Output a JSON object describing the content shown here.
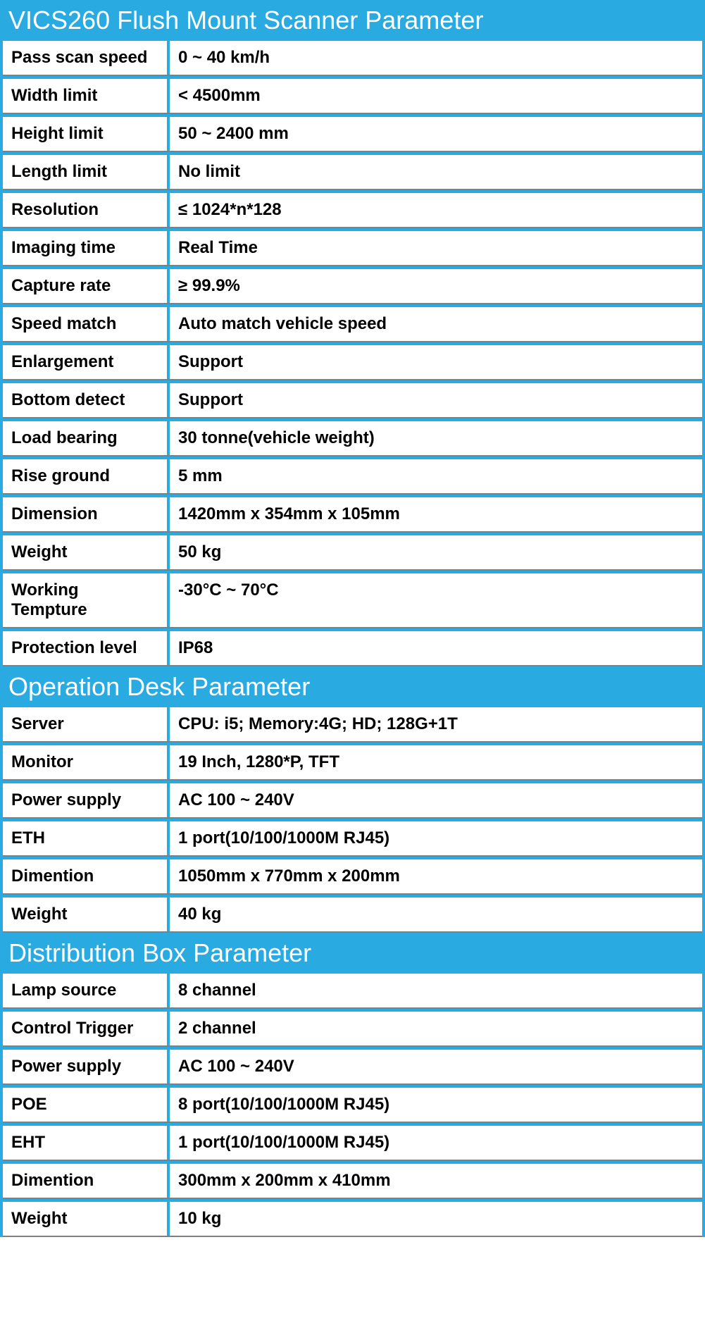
{
  "colors": {
    "header_bg": "#29abe2",
    "header_text": "#ffffff",
    "cell_text": "#000000",
    "cell_bg": "#ffffff",
    "divider": "#808080"
  },
  "typography": {
    "header_fontsize": 36,
    "cell_fontsize": 24,
    "cell_fontweight": 700,
    "header_fontweight": 400
  },
  "layout": {
    "label_column_width": 237,
    "total_width": 1001
  },
  "sections": [
    {
      "title": "VICS260 Flush Mount Scanner Parameter",
      "rows": [
        {
          "label": "Pass scan speed",
          "value": "0 ~ 40 km/h"
        },
        {
          "label": "Width limit",
          "value": "< 4500mm"
        },
        {
          "label": "Height limit",
          "value": "50 ~ 2400 mm"
        },
        {
          "label": "Length limit",
          "value": "No limit"
        },
        {
          "label": "Resolution",
          "value": "≤ 1024*n*128"
        },
        {
          "label": "Imaging time",
          "value": "Real Time"
        },
        {
          "label": "Capture rate",
          "value": "≥ 99.9%"
        },
        {
          "label": "Speed match",
          "value": "Auto match vehicle speed"
        },
        {
          "label": "Enlargement",
          "value": "Support"
        },
        {
          "label": "Bottom detect",
          "value": "Support"
        },
        {
          "label": "Load bearing",
          "value": "30 tonne(vehicle weight)"
        },
        {
          "label": "Rise ground",
          "value": "5 mm"
        },
        {
          "label": "Dimension",
          "value": "1420mm x 354mm x 105mm"
        },
        {
          "label": "Weight",
          "value": "50 kg"
        },
        {
          "label": "Working Tempture",
          "value": "-30°C ~ 70°C"
        },
        {
          "label": "Protection level",
          "value": "IP68"
        }
      ]
    },
    {
      "title": "Operation Desk Parameter",
      "rows": [
        {
          "label": "Server",
          "value": "CPU: i5; Memory:4G; HD; 128G+1T"
        },
        {
          "label": "Monitor",
          "value": "19 Inch, 1280*P, TFT"
        },
        {
          "label": "Power supply",
          "value": "AC 100 ~ 240V"
        },
        {
          "label": "ETH",
          "value": "1 port(10/100/1000M RJ45)"
        },
        {
          "label": "Dimention",
          "value": "1050mm x 770mm x 200mm"
        },
        {
          "label": "Weight",
          "value": "40 kg"
        }
      ]
    },
    {
      "title": "Distribution Box Parameter",
      "rows": [
        {
          "label": "Lamp source",
          "value": "8 channel"
        },
        {
          "label": "Control Trigger",
          "value": "2 channel"
        },
        {
          "label": "Power supply",
          "value": "AC 100 ~ 240V"
        },
        {
          "label": "POE",
          "value": "8 port(10/100/1000M RJ45)"
        },
        {
          "label": "EHT",
          "value": "1 port(10/100/1000M RJ45)"
        },
        {
          "label": "Dimention",
          "value": "300mm x 200mm x 410mm"
        },
        {
          "label": "Weight",
          "value": "10 kg"
        }
      ]
    }
  ]
}
